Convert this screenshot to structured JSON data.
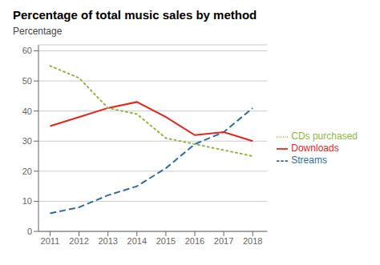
{
  "chart_data": {
    "type": "line",
    "title": "Percentage of total music sales by method",
    "ylabel": "Percentage",
    "x": [
      2011,
      2012,
      2013,
      2014,
      2015,
      2016,
      2017,
      2018
    ],
    "series": [
      {
        "name": "Streams",
        "color": "#2E6DA4",
        "line_style": "dashed",
        "values": [
          6,
          8,
          12,
          15,
          21,
          29,
          33,
          41
        ]
      },
      {
        "name": "Downloads",
        "color": "#E8231C",
        "line_style": "solid",
        "values": [
          35,
          38,
          41,
          43,
          38,
          32,
          33,
          30
        ]
      },
      {
        "name": "CDs purchased",
        "color": "#8DB83C",
        "line_style": "dotted",
        "values": [
          55,
          51,
          41,
          39,
          31,
          29,
          27,
          25
        ]
      }
    ],
    "xlim": [
      2010.6,
      2018.5
    ],
    "xticks": [
      2011,
      2012,
      2013,
      2014,
      2015,
      2016,
      2017,
      2018
    ],
    "ylim": [
      0,
      62
    ],
    "yticks": [
      0,
      10,
      20,
      30,
      40,
      50,
      60
    ],
    "grid": true,
    "legend": "right"
  }
}
